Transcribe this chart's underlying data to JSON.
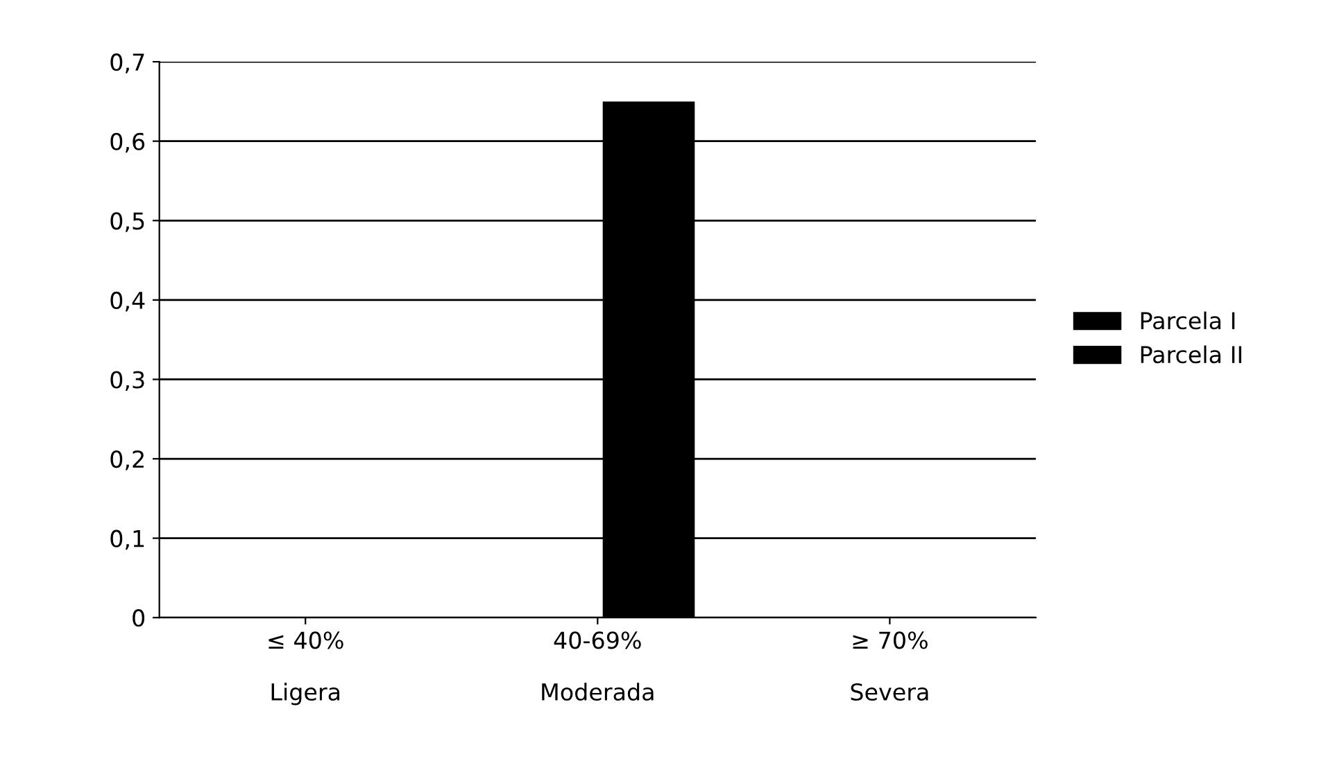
{
  "chart_data": {
    "type": "bar",
    "categories": [
      "≤ 40%\n\nLigera",
      "40-69%\n\nModerada",
      "≥ 70%\n\nSevera"
    ],
    "series": [
      {
        "name": "Parcela I",
        "color": "#000000",
        "values": [
          0,
          0,
          0
        ]
      },
      {
        "name": "Parcela II",
        "color": "#000000",
        "values": [
          0,
          0.65,
          0
        ]
      }
    ],
    "ylim": [
      0,
      0.7
    ],
    "yticks": [
      {
        "value": 0,
        "label": "0"
      },
      {
        "value": 0.1,
        "label": "0,1"
      },
      {
        "value": 0.2,
        "label": "0,2"
      },
      {
        "value": 0.3,
        "label": "0,3"
      },
      {
        "value": 0.4,
        "label": "0,4"
      },
      {
        "value": 0.5,
        "label": "0,5"
      },
      {
        "value": 0.6,
        "label": "0,6"
      },
      {
        "value": 0.7,
        "label": "0,7"
      }
    ],
    "grid": "y",
    "legend": "right"
  }
}
